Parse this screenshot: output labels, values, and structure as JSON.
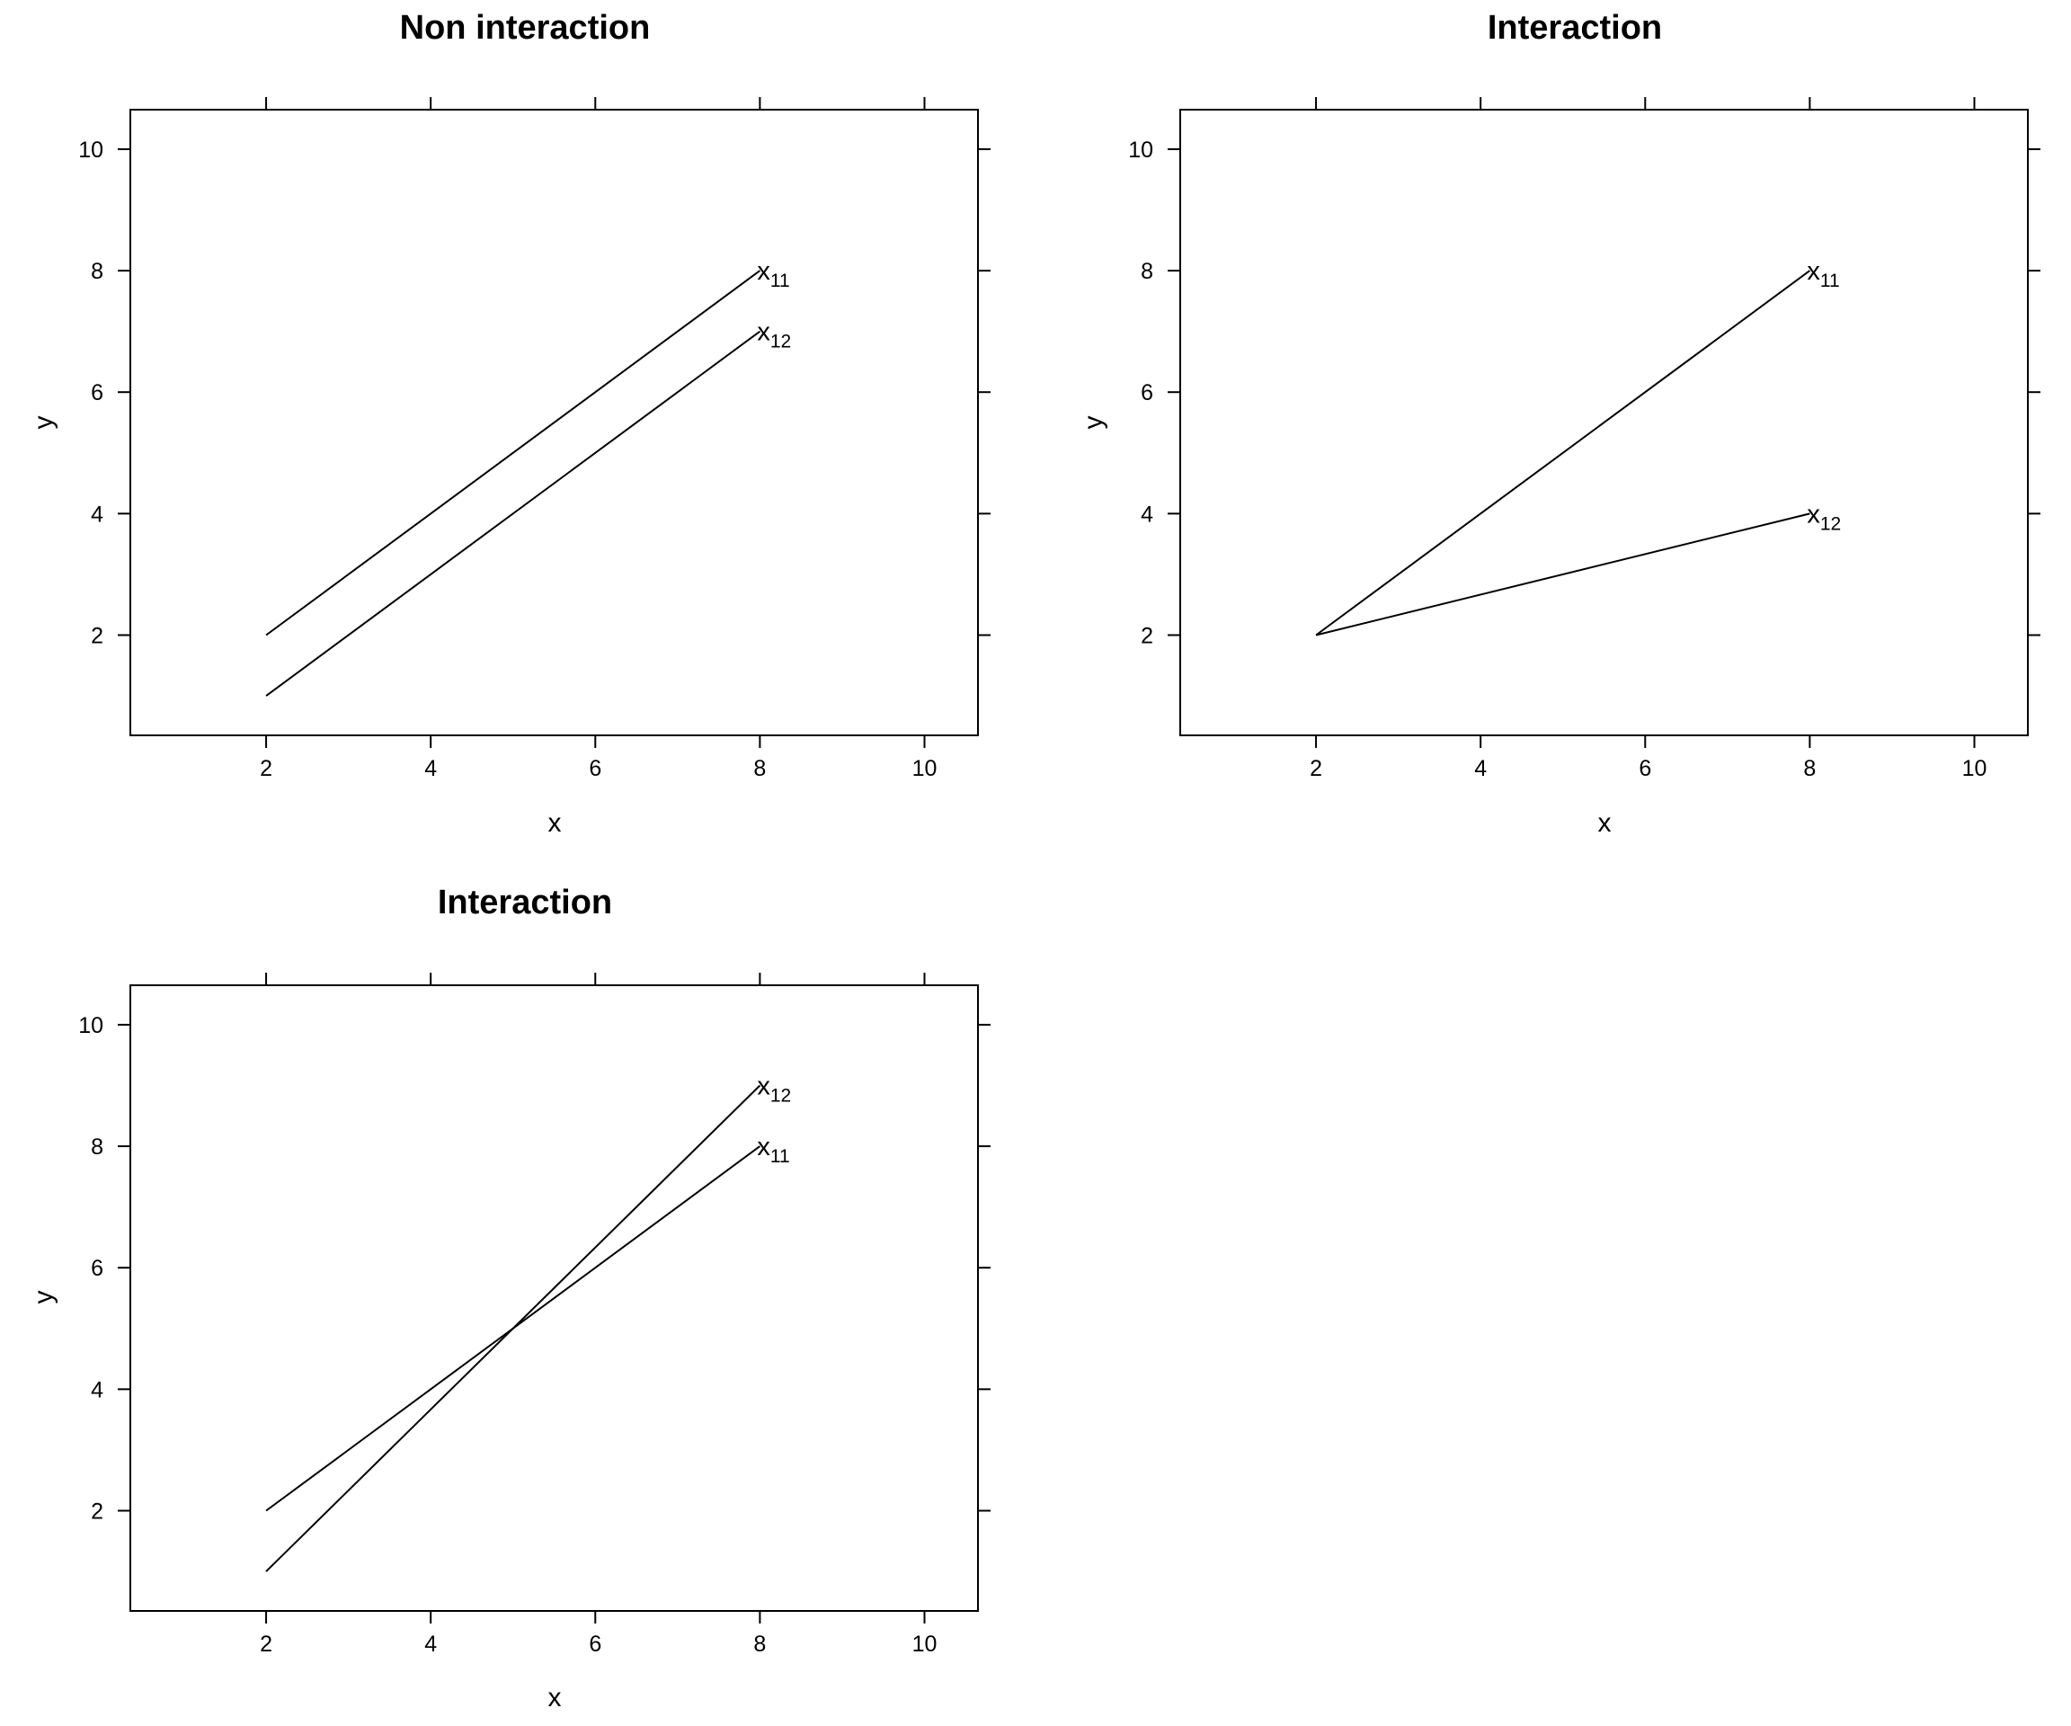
{
  "chart_data": [
    {
      "type": "line",
      "title": "Non interaction",
      "xlabel": "x",
      "ylabel": "y",
      "xlim": [
        0.35,
        10.65
      ],
      "ylim": [
        0.35,
        10.65
      ],
      "xticks": [
        2,
        4,
        6,
        8,
        10
      ],
      "yticks": [
        2,
        4,
        6,
        8,
        10
      ],
      "series": [
        {
          "label_base": "x",
          "label_sub": "11",
          "x": [
            2,
            8
          ],
          "y": [
            2,
            8
          ]
        },
        {
          "label_base": "x",
          "label_sub": "12",
          "x": [
            2,
            8
          ],
          "y": [
            1,
            7
          ]
        }
      ]
    },
    {
      "type": "line",
      "title": "Interaction",
      "xlabel": "x",
      "ylabel": "y",
      "xlim": [
        0.35,
        10.65
      ],
      "ylim": [
        0.35,
        10.65
      ],
      "xticks": [
        2,
        4,
        6,
        8,
        10
      ],
      "yticks": [
        2,
        4,
        6,
        8,
        10
      ],
      "series": [
        {
          "label_base": "x",
          "label_sub": "11",
          "x": [
            2,
            8
          ],
          "y": [
            2,
            8
          ]
        },
        {
          "label_base": "x",
          "label_sub": "12",
          "x": [
            2,
            8
          ],
          "y": [
            2,
            4
          ]
        }
      ]
    },
    {
      "type": "line",
      "title": "Interaction",
      "xlabel": "x",
      "ylabel": "y",
      "xlim": [
        0.35,
        10.65
      ],
      "ylim": [
        0.35,
        10.65
      ],
      "xticks": [
        2,
        4,
        6,
        8,
        10
      ],
      "yticks": [
        2,
        4,
        6,
        8,
        10
      ],
      "series": [
        {
          "label_base": "x",
          "label_sub": "11",
          "x": [
            2,
            8
          ],
          "y": [
            2,
            8
          ]
        },
        {
          "label_base": "x",
          "label_sub": "12",
          "x": [
            2,
            8
          ],
          "y": [
            1,
            9
          ]
        }
      ]
    }
  ]
}
